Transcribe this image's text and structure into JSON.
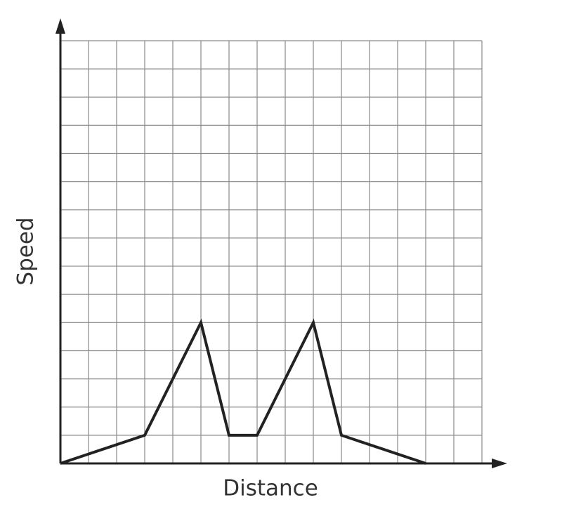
{
  "chart_data": {
    "type": "line",
    "xlabel": "Distance",
    "ylabel": "Speed",
    "x": [
      0,
      3,
      5,
      6,
      7,
      9,
      10,
      13
    ],
    "values": [
      0,
      1,
      5,
      1,
      1,
      5,
      1,
      0
    ],
    "color": "#222222",
    "xlim": [
      0,
      15
    ],
    "ylim": [
      0,
      15
    ],
    "xticks": [
      0,
      1,
      2,
      3,
      4,
      5,
      6,
      7,
      8,
      9,
      10,
      11,
      12,
      13,
      14,
      15
    ],
    "yticks": [
      0,
      1,
      2,
      3,
      4,
      5,
      6,
      7,
      8,
      9,
      10,
      11,
      12,
      13,
      14,
      15
    ],
    "grid": true,
    "tick_labels": false
  }
}
